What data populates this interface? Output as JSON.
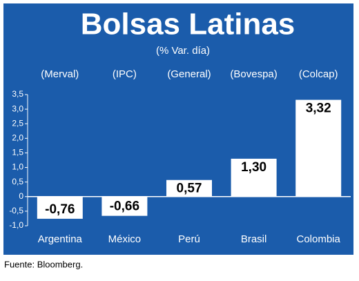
{
  "chart_data": {
    "type": "bar",
    "title": "Bolsas Latinas",
    "subtitle": "(% Var. día)",
    "index_labels": [
      "(Merval)",
      "(IPC)",
      "(General)",
      "(Bovespa)",
      "(Colcap)"
    ],
    "categories": [
      "Argentina",
      "México",
      "Perú",
      "Brasil",
      "Colombia"
    ],
    "values": [
      -0.76,
      -0.66,
      0.57,
      1.3,
      3.32
    ],
    "value_labels": [
      "-0,76",
      "-0,66",
      "0,57",
      "1,30",
      "3,32"
    ],
    "color": "#ffffff",
    "background": "#1b5cab",
    "ylim": [
      -1.0,
      3.5
    ],
    "yticks": [
      {
        "value": -1.0,
        "label": "-1,0"
      },
      {
        "value": -0.5,
        "label": "-0,5"
      },
      0,
      {
        "value": 0.5,
        "label": "0,5"
      },
      {
        "value": 1.0,
        "label": "1,0"
      },
      {
        "value": 1.5,
        "label": "1,5"
      },
      {
        "value": 2.0,
        "label": "2,0"
      },
      {
        "value": 2.5,
        "label": "2,5"
      },
      {
        "value": 3.0,
        "label": "3,0"
      },
      {
        "value": 3.5,
        "label": "3,5"
      }
    ],
    "grid": false,
    "source": "Fuente: Bloomberg."
  }
}
